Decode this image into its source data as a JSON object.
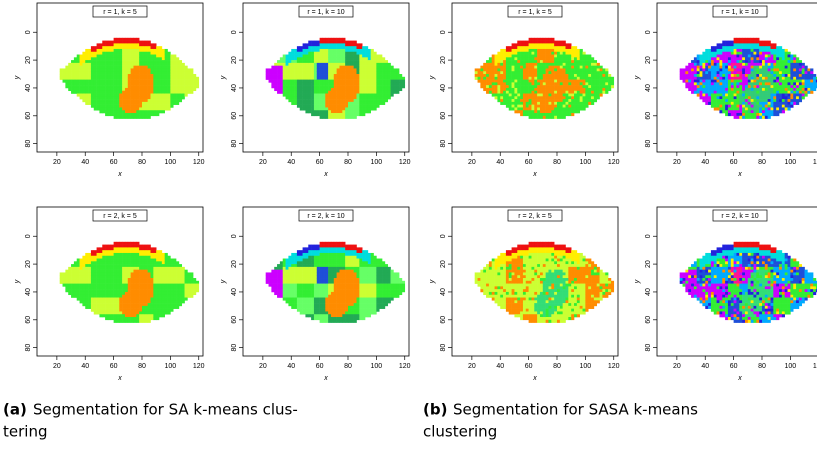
{
  "panels": [
    {
      "label": "r = 1, k = 5"
    },
    {
      "label": "r = 1, k = 10"
    },
    {
      "label": "r = 1, k = 5"
    },
    {
      "label": "r = 1, k = 10"
    },
    {
      "label": "r = 2, k = 5"
    },
    {
      "label": "r = 2, k = 10"
    },
    {
      "label": "r = 2, k = 5"
    },
    {
      "label": "r = 2, k = 10"
    }
  ],
  "axes": {
    "xlabel": "x",
    "ylabel": "y",
    "xticks": [
      20,
      40,
      60,
      80,
      100,
      120
    ],
    "yticks": [
      0,
      20,
      40,
      60,
      80
    ],
    "xlim": [
      6,
      123
    ],
    "ylim": [
      -21,
      86
    ]
  },
  "captions": [
    {
      "tag": "(a)",
      "lines": [
        "Segmentation for SA k-means clus-",
        "tering"
      ]
    },
    {
      "tag": "(b)",
      "lines": [
        "Segmentation for SASA k-means",
        "clustering"
      ]
    }
  ]
}
